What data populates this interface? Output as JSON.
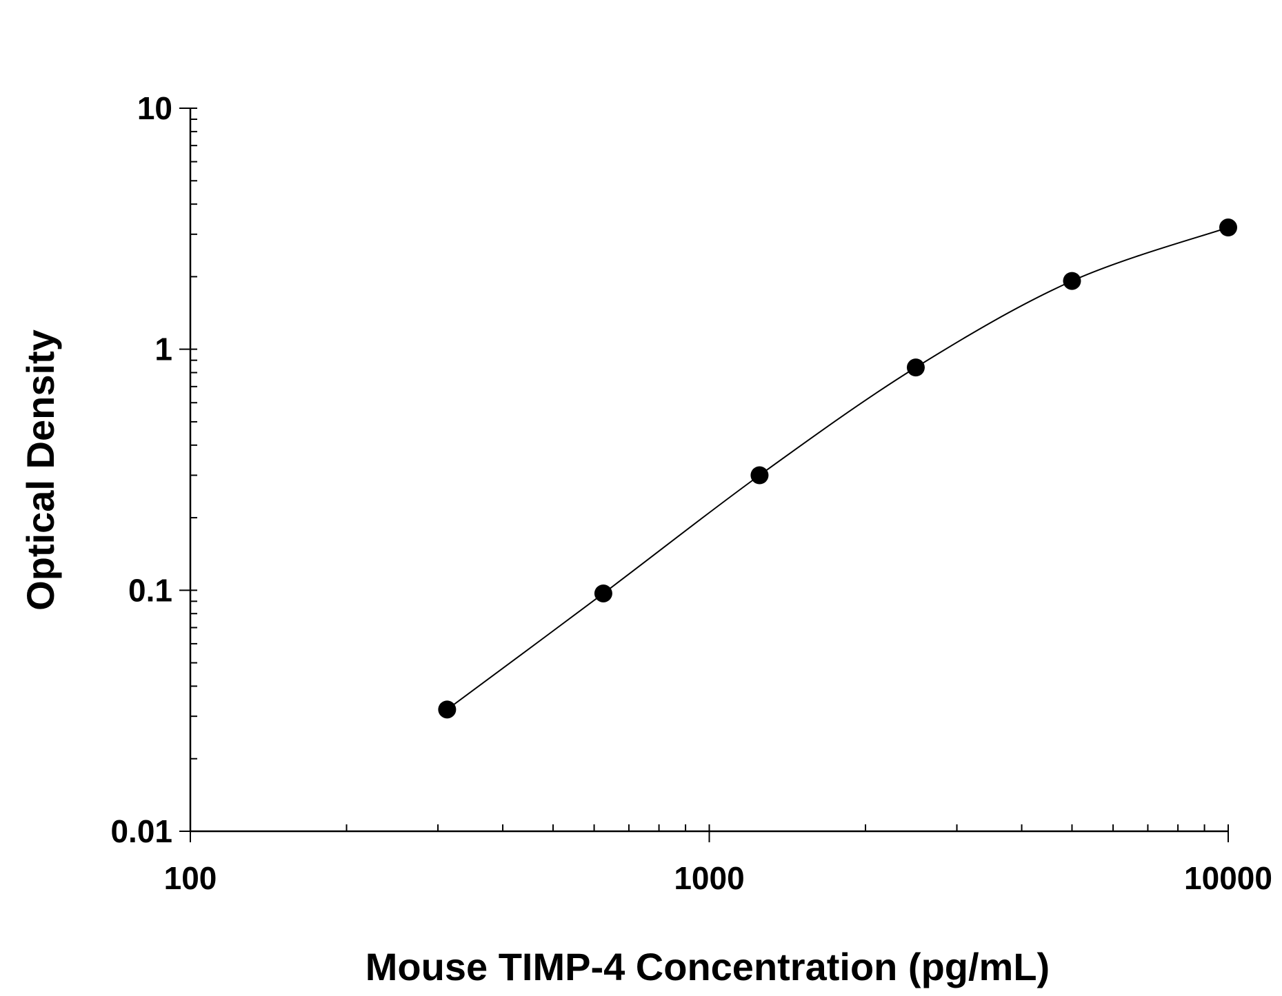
{
  "chart_data": {
    "type": "scatter",
    "xlabel": "Mouse TIMP-4 Concentration (pg/mL)",
    "ylabel": "Optical Density",
    "x_scale": "log",
    "y_scale": "log",
    "xlim": [
      100,
      10000
    ],
    "ylim": [
      0.01,
      10
    ],
    "x_ticks": [
      100,
      1000,
      10000
    ],
    "x_tick_labels": [
      "100",
      "1000",
      "10000"
    ],
    "y_ticks": [
      0.01,
      0.1,
      1,
      10
    ],
    "y_tick_labels": [
      "0.01",
      "0.1",
      "1",
      "10"
    ],
    "grid": false,
    "series": [
      {
        "x": [
          312.5,
          625,
          1250,
          2500,
          5000,
          10000
        ],
        "y": [
          0.032,
          0.097,
          0.3,
          0.84,
          1.92,
          3.2
        ],
        "fit_curve": true
      }
    ],
    "colors": {
      "marker": "#000000",
      "line": "#000000",
      "axis": "#000000"
    }
  }
}
